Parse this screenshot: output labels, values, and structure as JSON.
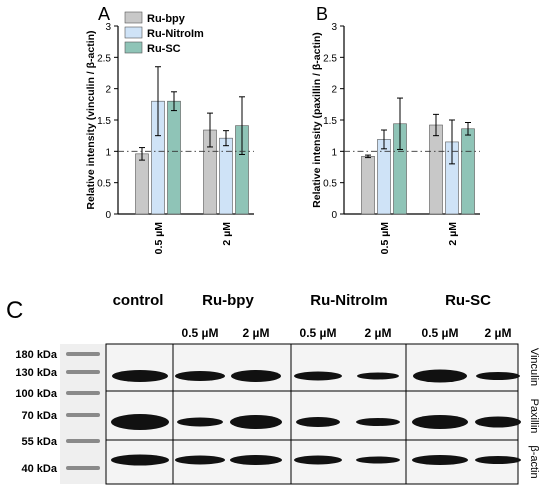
{
  "chart_data": [
    {
      "panel_label": "A",
      "type": "bar",
      "ylabel": "Relative intensity (vinculin / β-actin)",
      "xlabel": "",
      "categories": [
        "0.5 µM",
        "2 µM"
      ],
      "ylim": [
        0,
        3
      ],
      "yticks": [
        "0",
        "0.5",
        "1",
        "1.5",
        "2",
        "2.5",
        "3"
      ],
      "reference_line": 1,
      "series": [
        {
          "name": "Ru-bpy",
          "values": [
            0.96,
            1.34
          ],
          "error": [
            0.1,
            0.27
          ]
        },
        {
          "name": "Ru-NitroIm",
          "values": [
            1.8,
            1.21
          ],
          "error": [
            0.55,
            0.12
          ]
        },
        {
          "name": "Ru-SC",
          "values": [
            1.8,
            1.41
          ],
          "error": [
            0.15,
            0.46
          ]
        }
      ]
    },
    {
      "panel_label": "B",
      "type": "bar",
      "ylabel": "Relative intensity (paxillin / β-actin)",
      "xlabel": "",
      "categories": [
        "0.5 µM",
        "2 µM"
      ],
      "ylim": [
        0,
        3
      ],
      "yticks": [
        "0",
        "0.5",
        "1",
        "1.5",
        "2",
        "2.5",
        "3"
      ],
      "reference_line": 1,
      "series": [
        {
          "name": "Ru-bpy",
          "values": [
            0.92,
            1.42
          ],
          "error": [
            0.02,
            0.17
          ]
        },
        {
          "name": "Ru-NitroIm",
          "values": [
            1.19,
            1.15
          ],
          "error": [
            0.15,
            0.35
          ]
        },
        {
          "name": "Ru-SC",
          "values": [
            1.44,
            1.36
          ],
          "error": [
            0.41,
            0.1
          ]
        }
      ]
    }
  ],
  "legend": {
    "placement": "top-left",
    "items": [
      "Ru-bpy",
      "Ru-NitroIm",
      "Ru-SC"
    ]
  },
  "colors": {
    "Ru-bpy": "#c8c8c8",
    "Ru-NitroIm": "#cfe3f7",
    "Ru-SC": "#8fc4b7"
  },
  "blot": {
    "panel_label": "C",
    "groups": [
      "control",
      "Ru-bpy",
      "Ru-NitroIm",
      "Ru-SC"
    ],
    "concentrations": [
      "0.5 µM",
      "2 µM",
      "0.5 µM",
      "2 µM",
      "0.5 µM",
      "2 µM"
    ],
    "markers": [
      "180 kDa",
      "130 kDa",
      "100 kDa",
      "70 kDa",
      "55 kDa",
      "40 kDa"
    ],
    "rows": [
      "Vinculin",
      "Paxillin",
      "β-actin"
    ]
  }
}
